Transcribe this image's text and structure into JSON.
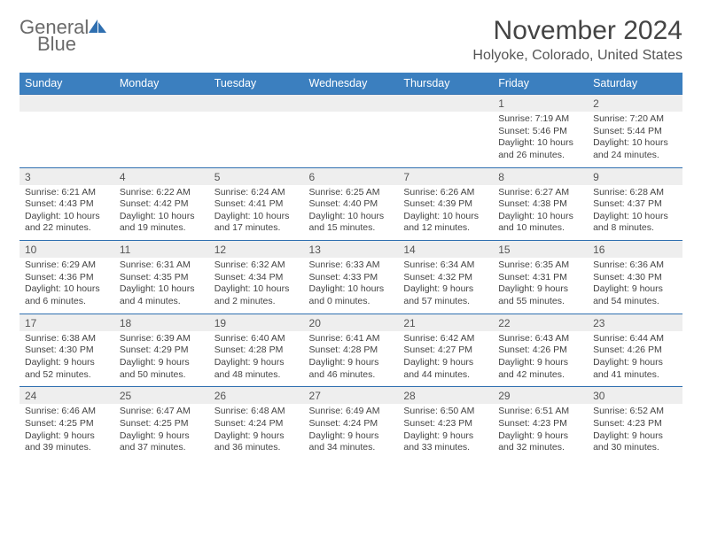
{
  "logo": {
    "text_general": "General",
    "text_blue": "Blue"
  },
  "title": "November 2024",
  "location": "Holyoke, Colorado, United States",
  "colors": {
    "header_bg": "#3b7fbf",
    "header_text": "#ffffff",
    "numrow_bg": "#eeeeee",
    "border": "#2f6fb0",
    "body_text": "#444444",
    "logo_gray": "#6a6a6a",
    "logo_blue": "#2f6fb0"
  },
  "day_headers": [
    "Sunday",
    "Monday",
    "Tuesday",
    "Wednesday",
    "Thursday",
    "Friday",
    "Saturday"
  ],
  "weeks": [
    {
      "nums": [
        "",
        "",
        "",
        "",
        "",
        "1",
        "2"
      ],
      "cells": [
        null,
        null,
        null,
        null,
        null,
        {
          "sunrise": "7:19 AM",
          "sunset": "5:46 PM",
          "day_h": 10,
          "day_m": 26
        },
        {
          "sunrise": "7:20 AM",
          "sunset": "5:44 PM",
          "day_h": 10,
          "day_m": 24
        }
      ]
    },
    {
      "nums": [
        "3",
        "4",
        "5",
        "6",
        "7",
        "8",
        "9"
      ],
      "cells": [
        {
          "sunrise": "6:21 AM",
          "sunset": "4:43 PM",
          "day_h": 10,
          "day_m": 22
        },
        {
          "sunrise": "6:22 AM",
          "sunset": "4:42 PM",
          "day_h": 10,
          "day_m": 19
        },
        {
          "sunrise": "6:24 AM",
          "sunset": "4:41 PM",
          "day_h": 10,
          "day_m": 17
        },
        {
          "sunrise": "6:25 AM",
          "sunset": "4:40 PM",
          "day_h": 10,
          "day_m": 15
        },
        {
          "sunrise": "6:26 AM",
          "sunset": "4:39 PM",
          "day_h": 10,
          "day_m": 12
        },
        {
          "sunrise": "6:27 AM",
          "sunset": "4:38 PM",
          "day_h": 10,
          "day_m": 10
        },
        {
          "sunrise": "6:28 AM",
          "sunset": "4:37 PM",
          "day_h": 10,
          "day_m": 8
        }
      ]
    },
    {
      "nums": [
        "10",
        "11",
        "12",
        "13",
        "14",
        "15",
        "16"
      ],
      "cells": [
        {
          "sunrise": "6:29 AM",
          "sunset": "4:36 PM",
          "day_h": 10,
          "day_m": 6
        },
        {
          "sunrise": "6:31 AM",
          "sunset": "4:35 PM",
          "day_h": 10,
          "day_m": 4
        },
        {
          "sunrise": "6:32 AM",
          "sunset": "4:34 PM",
          "day_h": 10,
          "day_m": 2
        },
        {
          "sunrise": "6:33 AM",
          "sunset": "4:33 PM",
          "day_h": 10,
          "day_m": 0
        },
        {
          "sunrise": "6:34 AM",
          "sunset": "4:32 PM",
          "day_h": 9,
          "day_m": 57
        },
        {
          "sunrise": "6:35 AM",
          "sunset": "4:31 PM",
          "day_h": 9,
          "day_m": 55
        },
        {
          "sunrise": "6:36 AM",
          "sunset": "4:30 PM",
          "day_h": 9,
          "day_m": 54
        }
      ]
    },
    {
      "nums": [
        "17",
        "18",
        "19",
        "20",
        "21",
        "22",
        "23"
      ],
      "cells": [
        {
          "sunrise": "6:38 AM",
          "sunset": "4:30 PM",
          "day_h": 9,
          "day_m": 52
        },
        {
          "sunrise": "6:39 AM",
          "sunset": "4:29 PM",
          "day_h": 9,
          "day_m": 50
        },
        {
          "sunrise": "6:40 AM",
          "sunset": "4:28 PM",
          "day_h": 9,
          "day_m": 48
        },
        {
          "sunrise": "6:41 AM",
          "sunset": "4:28 PM",
          "day_h": 9,
          "day_m": 46
        },
        {
          "sunrise": "6:42 AM",
          "sunset": "4:27 PM",
          "day_h": 9,
          "day_m": 44
        },
        {
          "sunrise": "6:43 AM",
          "sunset": "4:26 PM",
          "day_h": 9,
          "day_m": 42
        },
        {
          "sunrise": "6:44 AM",
          "sunset": "4:26 PM",
          "day_h": 9,
          "day_m": 41
        }
      ]
    },
    {
      "nums": [
        "24",
        "25",
        "26",
        "27",
        "28",
        "29",
        "30"
      ],
      "cells": [
        {
          "sunrise": "6:46 AM",
          "sunset": "4:25 PM",
          "day_h": 9,
          "day_m": 39
        },
        {
          "sunrise": "6:47 AM",
          "sunset": "4:25 PM",
          "day_h": 9,
          "day_m": 37
        },
        {
          "sunrise": "6:48 AM",
          "sunset": "4:24 PM",
          "day_h": 9,
          "day_m": 36
        },
        {
          "sunrise": "6:49 AM",
          "sunset": "4:24 PM",
          "day_h": 9,
          "day_m": 34
        },
        {
          "sunrise": "6:50 AM",
          "sunset": "4:23 PM",
          "day_h": 9,
          "day_m": 33
        },
        {
          "sunrise": "6:51 AM",
          "sunset": "4:23 PM",
          "day_h": 9,
          "day_m": 32
        },
        {
          "sunrise": "6:52 AM",
          "sunset": "4:23 PM",
          "day_h": 9,
          "day_m": 30
        }
      ]
    }
  ]
}
